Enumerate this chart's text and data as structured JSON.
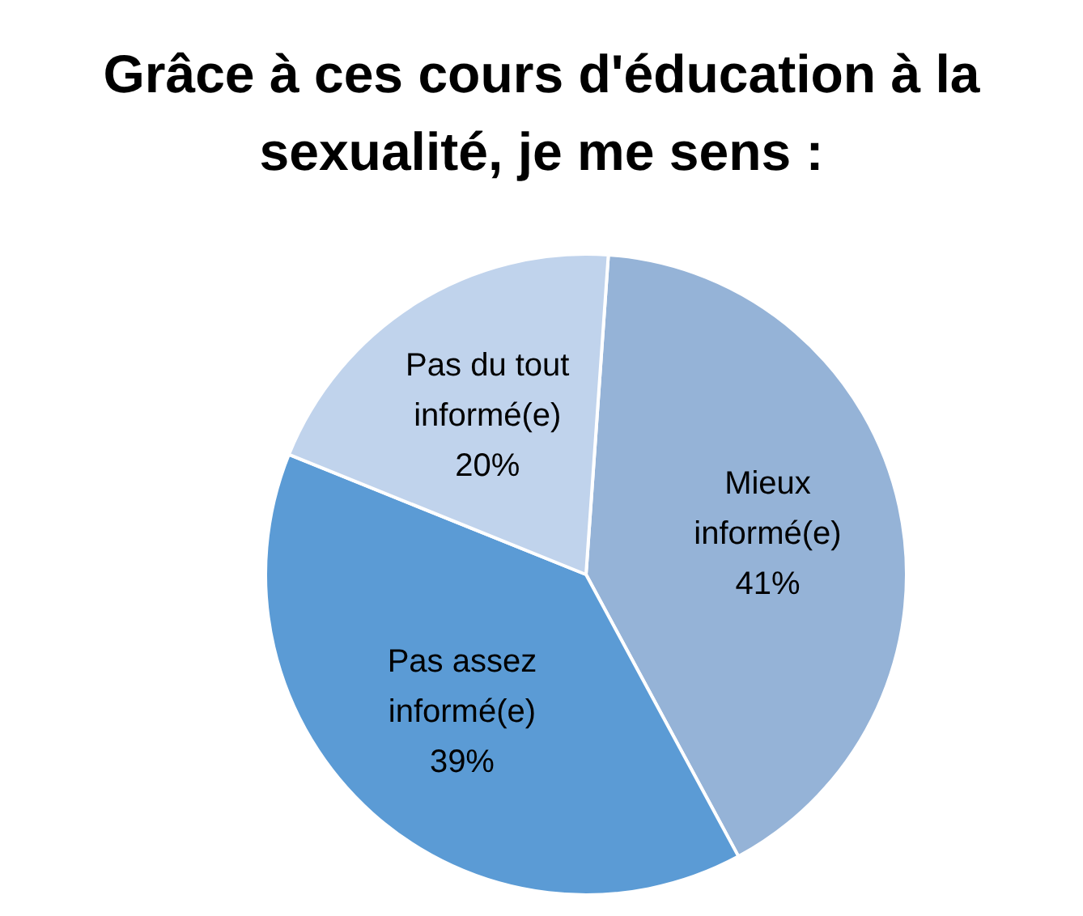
{
  "chart_data": {
    "type": "pie",
    "title": "Grâce à ces cours d'éducation à la sexualité, je me sens :",
    "categories": [
      "Mieux informé(e)",
      "Pas assez informé(e)",
      "Pas du tout informé(e)"
    ],
    "values": [
      41,
      39,
      20
    ],
    "colors": [
      "#95b3d7",
      "#5b9bd5",
      "#c0d3ec"
    ],
    "value_labels": [
      "41%",
      "39%",
      "20%"
    ]
  }
}
